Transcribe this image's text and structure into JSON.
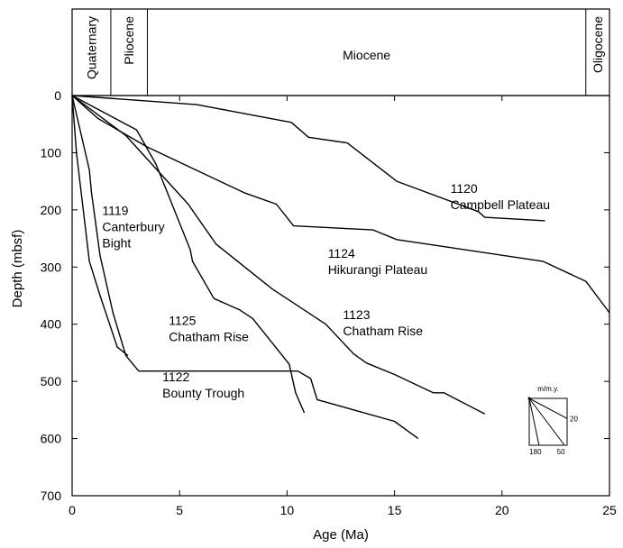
{
  "chart_data": {
    "type": "line",
    "xlabel": "Age (Ma)",
    "ylabel": "Depth (mbsf)",
    "xlim": [
      0,
      25
    ],
    "ylim": [
      0,
      700
    ],
    "y_inverted": true,
    "xticks": [
      0,
      5,
      10,
      15,
      20,
      25
    ],
    "yticks": [
      0,
      100,
      200,
      300,
      400,
      500,
      600,
      700
    ],
    "epochs": [
      {
        "name": "Quaternary",
        "start": 0,
        "end": 1.8,
        "vertical": true
      },
      {
        "name": "Pliocene",
        "start": 1.8,
        "end": 3.5,
        "vertical": true
      },
      {
        "name": "Miocene",
        "start": 3.5,
        "end": 23.9,
        "vertical": false
      },
      {
        "name": "Oligocene",
        "start": 23.9,
        "end": 25,
        "vertical": true
      }
    ],
    "series": [
      {
        "name": "1120 Campbell Plateau",
        "points": [
          [
            0,
            0
          ],
          [
            5.8,
            16
          ],
          [
            10.2,
            47
          ],
          [
            11,
            73
          ],
          [
            12.8,
            83
          ],
          [
            15.1,
            150
          ],
          [
            18.9,
            203
          ],
          [
            19.2,
            213
          ],
          [
            22,
            219
          ]
        ]
      },
      {
        "name": "1124 Hikurangi Plateau",
        "points": [
          [
            0,
            0
          ],
          [
            1.2,
            40
          ],
          [
            3.5,
            90
          ],
          [
            8,
            170
          ],
          [
            9.5,
            190
          ],
          [
            10.3,
            228
          ],
          [
            14,
            235
          ],
          [
            15.1,
            252
          ],
          [
            21.9,
            290
          ],
          [
            23.9,
            325
          ],
          [
            25,
            380
          ]
        ]
      },
      {
        "name": "1123 Chatham Rise",
        "points": [
          [
            0,
            0
          ],
          [
            2.5,
            70
          ],
          [
            5.4,
            190
          ],
          [
            6.7,
            260
          ],
          [
            9.3,
            338
          ],
          [
            11.8,
            400
          ],
          [
            13.1,
            452
          ],
          [
            13.7,
            468
          ],
          [
            15,
            488
          ],
          [
            16.8,
            520
          ],
          [
            17.3,
            520
          ],
          [
            19.2,
            557
          ]
        ]
      },
      {
        "name": "1119 Canterbury Bight",
        "points": [
          [
            0,
            0
          ],
          [
            0.8,
            130
          ],
          [
            0.9,
            170
          ],
          [
            1.3,
            280
          ],
          [
            1.9,
            380
          ],
          [
            2.5,
            455
          ],
          [
            3.1,
            482
          ],
          [
            10.5,
            482
          ],
          [
            11.1,
            495
          ],
          [
            11.4,
            532
          ],
          [
            15,
            570
          ],
          [
            16.1,
            600
          ]
        ]
      },
      {
        "name": "1125 Chatham Rise",
        "points": [
          [
            0,
            0
          ],
          [
            3,
            60
          ],
          [
            3.9,
            120
          ],
          [
            5.5,
            270
          ],
          [
            5.6,
            290
          ],
          [
            6.6,
            355
          ],
          [
            7.8,
            375
          ],
          [
            8.4,
            390
          ],
          [
            10.1,
            470
          ],
          [
            10.4,
            520
          ],
          [
            10.8,
            555
          ]
        ]
      },
      {
        "name": "1122 Bounty Trough",
        "points": [
          [
            0,
            0
          ],
          [
            0.2,
            100
          ],
          [
            0.8,
            290
          ],
          [
            1.3,
            350
          ],
          [
            2.1,
            440
          ],
          [
            2.6,
            455
          ]
        ]
      }
    ],
    "annotations": [
      {
        "lines": [
          "1120",
          "Campbell Plateau"
        ],
        "x": 17.6,
        "y": 170
      },
      {
        "lines": [
          "1124",
          "Hikurangi Plateau"
        ],
        "x": 11.9,
        "y": 284
      },
      {
        "lines": [
          "1123",
          "Chatham Rise"
        ],
        "x": 12.6,
        "y": 391
      },
      {
        "lines": [
          "1119",
          "Canterbury",
          "Bight"
        ],
        "x": 1.4,
        "y": 209
      },
      {
        "lines": [
          "1125",
          "Chatham Rise"
        ],
        "x": 4.5,
        "y": 401
      },
      {
        "lines": [
          "1122",
          "Bounty Trough"
        ],
        "x": 4.2,
        "y": 500
      }
    ],
    "rate_key": {
      "title": "m/m.y.",
      "lines": [
        {
          "label": "20",
          "rate": 20
        },
        {
          "label": "50",
          "rate": 50
        },
        {
          "label": "180",
          "rate": 180
        }
      ]
    }
  }
}
